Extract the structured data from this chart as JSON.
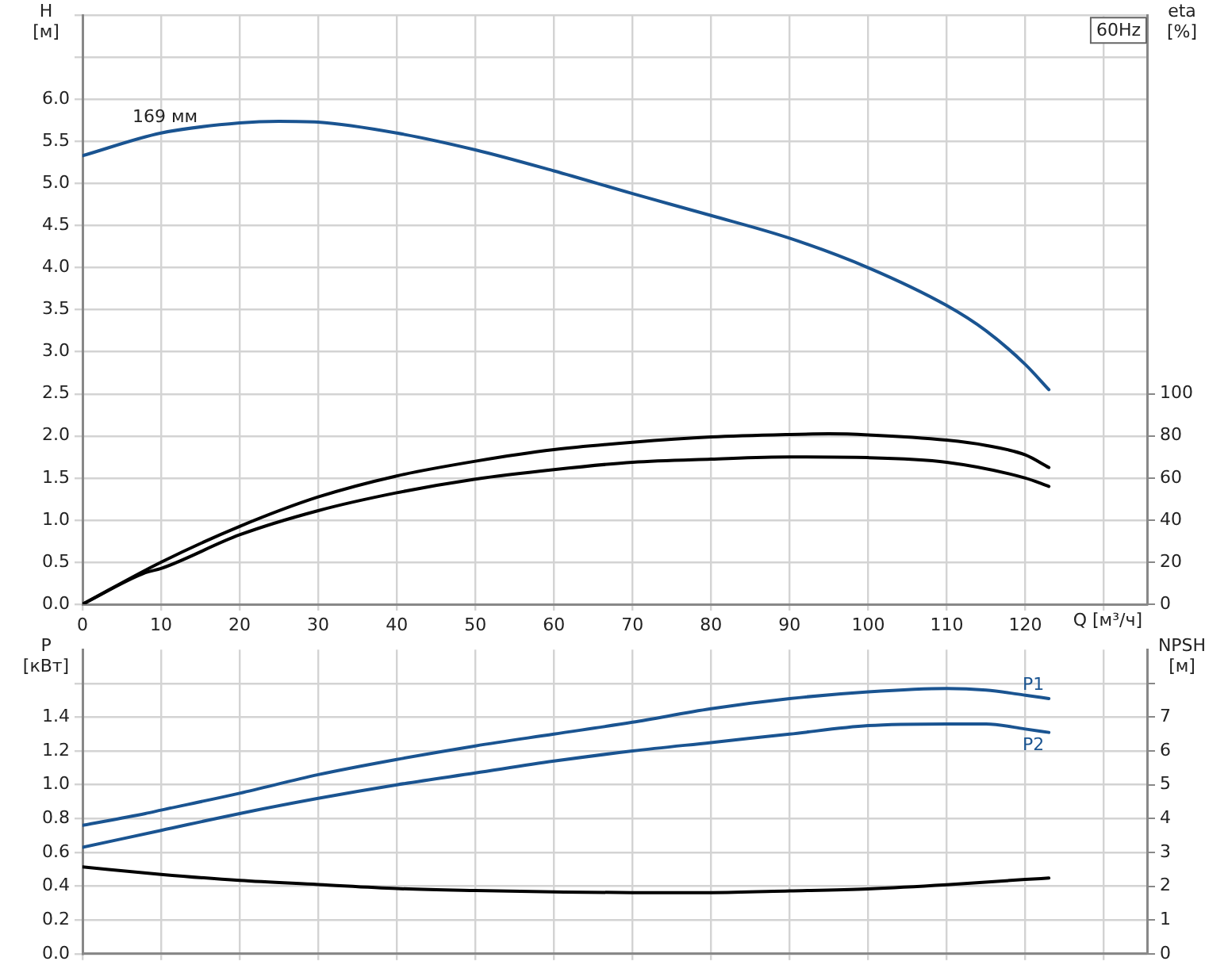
{
  "chart_data": [
    {
      "type": "line",
      "title": "60Hz",
      "xlabel": "Q [м³/ч]",
      "ylabel": "H [м]",
      "y2label": "eta [%]",
      "annotations": [
        {
          "text": "169 мм",
          "x": 10.5,
          "y": 5.64
        }
      ],
      "xlim": [
        0,
        135.5
      ],
      "xticks": [
        0,
        10,
        20,
        30,
        40,
        50,
        60,
        70,
        80,
        90,
        100,
        110,
        120,
        {
          "value": 130,
          "label": null
        }
      ],
      "ylim": [
        0,
        7
      ],
      "yticks": [
        {
          "value": 0,
          "label": "0.0"
        },
        0.5,
        {
          "value": 1,
          "label": "1.0"
        },
        1.5,
        {
          "value": 2,
          "label": "2.0"
        },
        2.5,
        {
          "value": 3,
          "label": "3.0"
        },
        3.5,
        {
          "value": 4,
          "label": "4.0"
        },
        4.5,
        {
          "value": 5,
          "label": "5.0"
        },
        5.5,
        {
          "value": 6,
          "label": "6.0"
        },
        {
          "value": 6.5,
          "label": null
        },
        {
          "value": 7,
          "label": null
        }
      ],
      "y2lim": [
        0,
        280
      ],
      "y2ticks": [
        0,
        20,
        40,
        60,
        80,
        100
      ],
      "grid": true,
      "legend": false,
      "marker": "none",
      "line_style": "solid",
      "series": [
        {
          "color": "#1a5491",
          "x": [
            0,
            10,
            20,
            25,
            30,
            40,
            50,
            60,
            70,
            80,
            90,
            100,
            110,
            115,
            120,
            123
          ],
          "values": [
            5.33,
            5.6,
            5.72,
            5.74,
            5.73,
            5.6,
            5.4,
            5.15,
            4.88,
            4.62,
            4.35,
            4.0,
            3.55,
            3.25,
            2.85,
            2.55
          ]
        },
        {
          "color": "#000000",
          "axis": "y2",
          "x": [
            0,
            10,
            20,
            30,
            40,
            50,
            60,
            70,
            80,
            90,
            95,
            100,
            110,
            115,
            120,
            123
          ],
          "values": [
            0,
            20,
            37,
            51,
            61,
            68,
            73.5,
            77,
            79.5,
            80.7,
            81,
            80.5,
            78,
            75.5,
            71,
            65
          ]
        },
        {
          "color": "#000000",
          "axis": "y2",
          "x": [
            0,
            8,
            10,
            20,
            30,
            40,
            50,
            60,
            70,
            80,
            90,
            100,
            110,
            120,
            123
          ],
          "values": [
            0,
            15,
            17,
            33,
            44.5,
            53,
            59.5,
            64,
            67.5,
            69,
            70,
            69.7,
            67.5,
            60,
            56
          ]
        }
      ]
    },
    {
      "type": "line",
      "ylabel": "P [кВт]",
      "y2label": "NPSH [м]",
      "tick_labels": "y",
      "xlim": [
        0,
        135.5
      ],
      "xticks": [
        0,
        10,
        20,
        30,
        40,
        50,
        60,
        70,
        80,
        90,
        100,
        110,
        120,
        130
      ],
      "ylim": [
        0,
        1.8
      ],
      "yticks": [
        {
          "value": 0,
          "label": "0.0"
        },
        0.2,
        0.4,
        0.6,
        0.8,
        {
          "value": 1,
          "label": "1.0"
        },
        1.2,
        1.4,
        {
          "value": 1.6,
          "label": null
        }
      ],
      "y2lim": [
        0,
        9
      ],
      "y2ticks": [
        0,
        1,
        2,
        3,
        4,
        5,
        6,
        7,
        {
          "value": 8,
          "label": null
        }
      ],
      "grid": true,
      "legend": false,
      "marker": "none",
      "line_style": "solid",
      "series": [
        {
          "name": "P1",
          "color": "#1a5491",
          "x": [
            0,
            8,
            10,
            20,
            30,
            40,
            50,
            60,
            70,
            80,
            90,
            100,
            110,
            115,
            120,
            123
          ],
          "values": [
            0.76,
            0.83,
            0.85,
            0.95,
            1.06,
            1.15,
            1.23,
            1.3,
            1.37,
            1.45,
            1.51,
            1.55,
            1.57,
            1.56,
            1.53,
            1.51
          ]
        },
        {
          "name": "P2",
          "color": "#1a5491",
          "x": [
            0,
            10,
            20,
            30,
            40,
            50,
            60,
            70,
            80,
            90,
            100,
            110,
            115,
            120,
            123
          ],
          "values": [
            0.63,
            0.73,
            0.83,
            0.92,
            1.0,
            1.07,
            1.14,
            1.2,
            1.25,
            1.3,
            1.35,
            1.36,
            1.36,
            1.33,
            1.31
          ]
        },
        {
          "color": "#000000",
          "axis": "y2",
          "x": [
            0,
            10,
            20,
            30,
            40,
            50,
            60,
            70,
            80,
            90,
            100,
            110,
            120,
            123
          ],
          "values": [
            2.57,
            2.35,
            2.17,
            2.05,
            1.93,
            1.87,
            1.83,
            1.81,
            1.81,
            1.86,
            1.92,
            2.04,
            2.2,
            2.24
          ]
        }
      ]
    }
  ]
}
